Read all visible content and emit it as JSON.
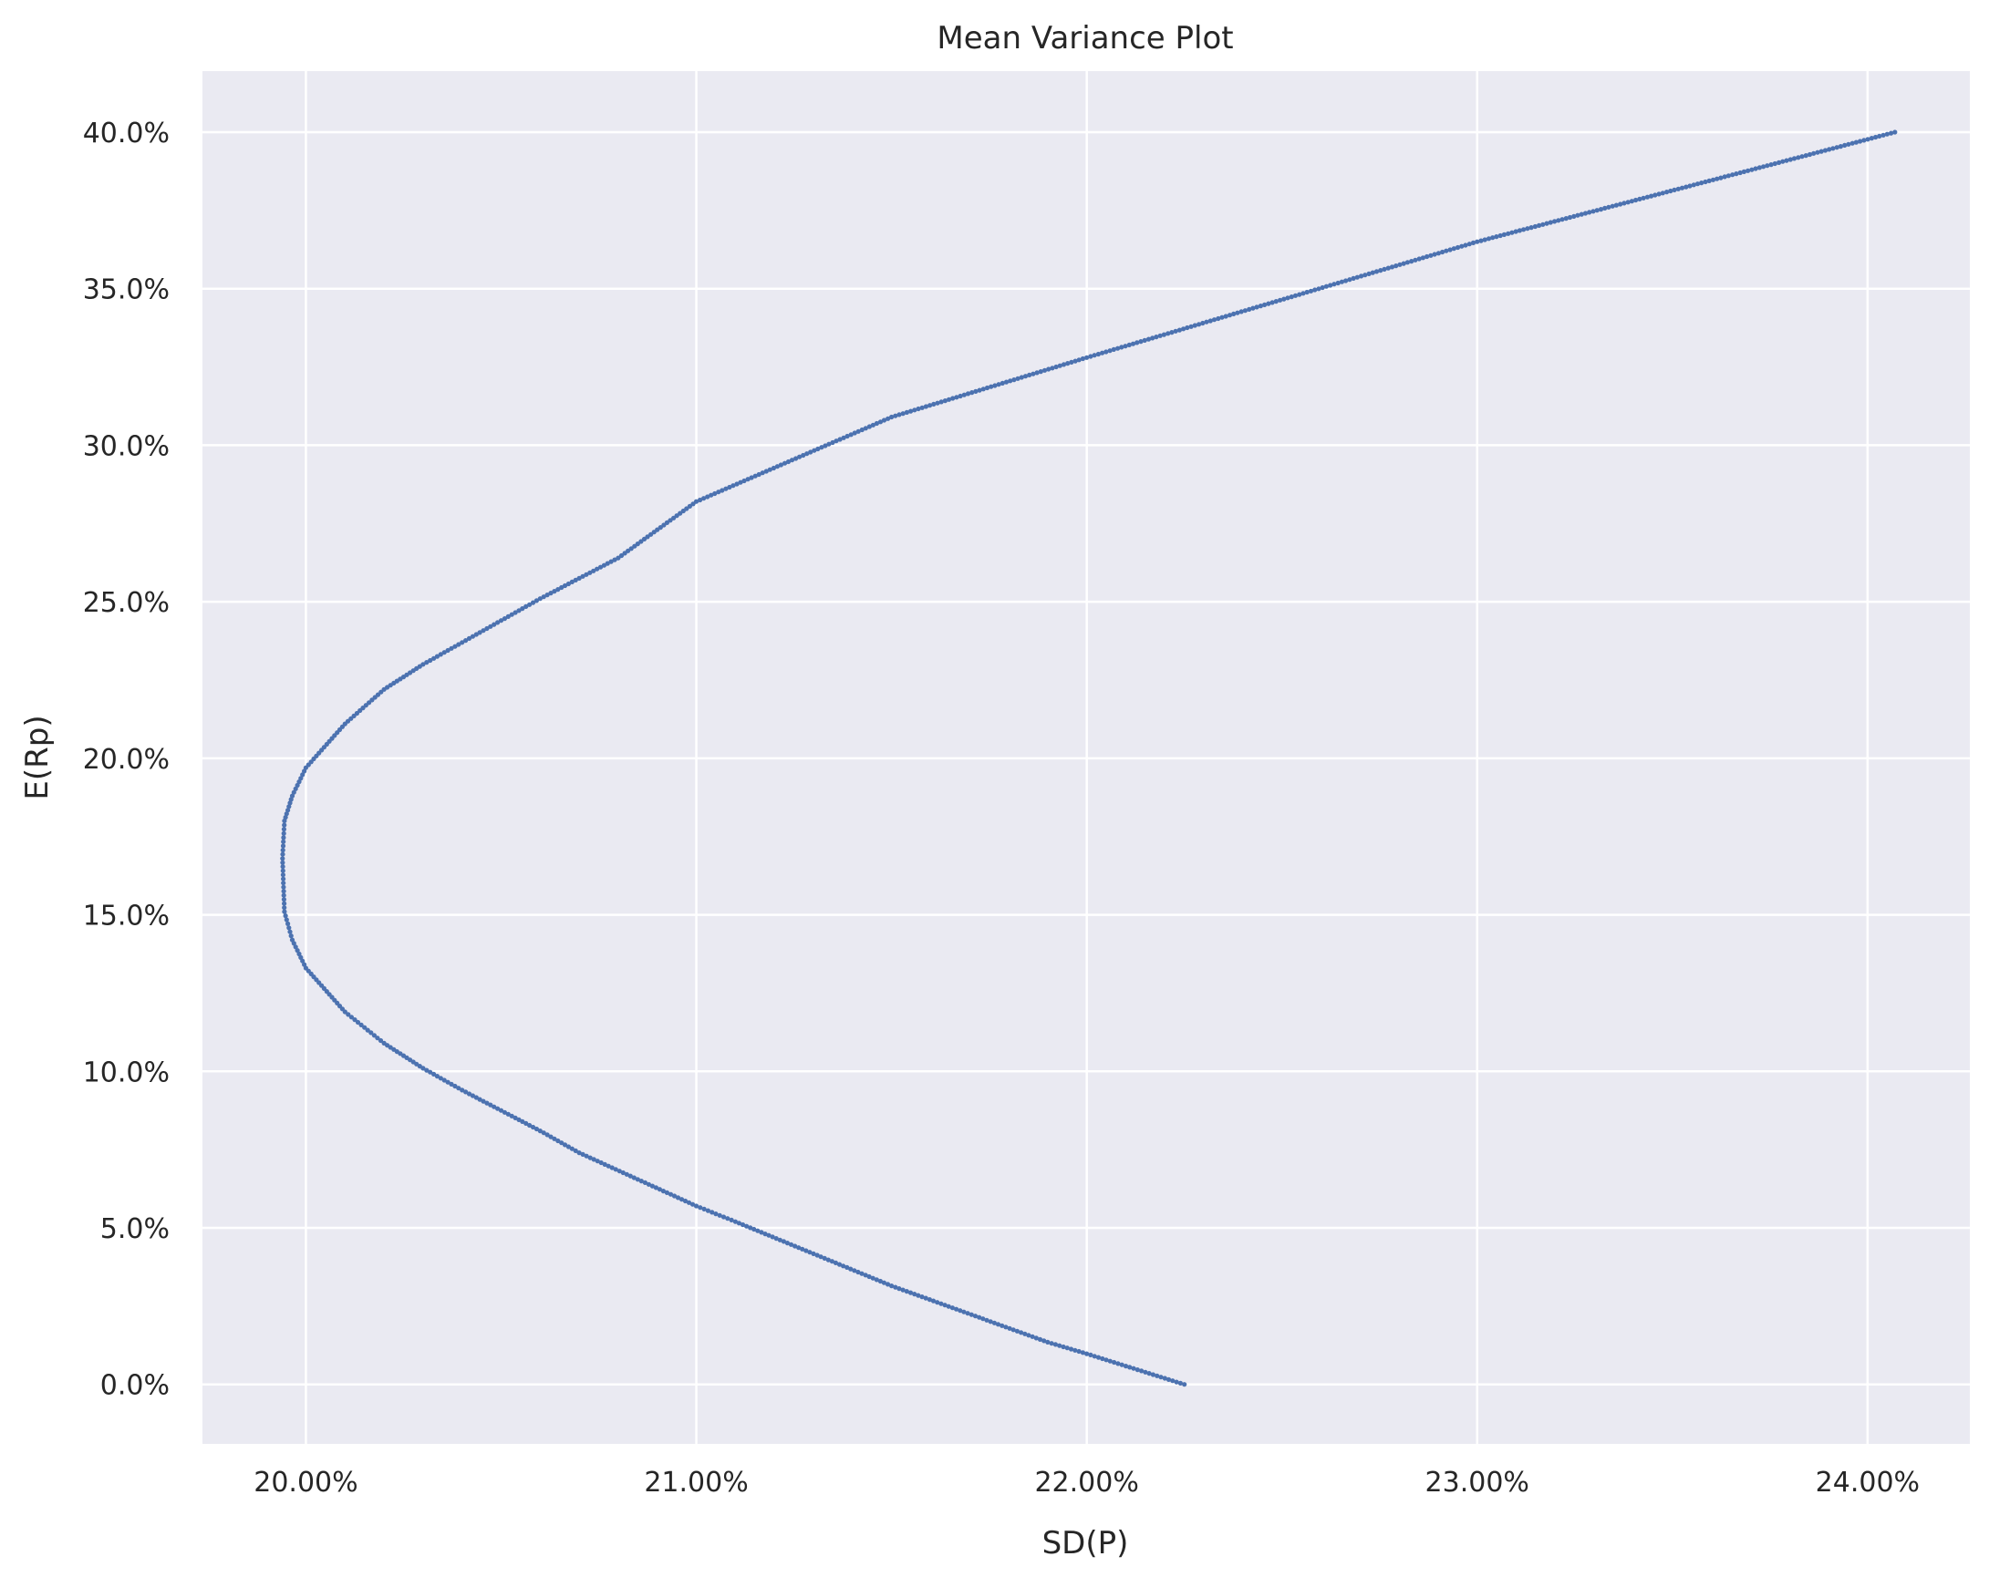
{
  "chart_data": {
    "type": "scatter",
    "title": "Mean Variance Plot",
    "xlabel": "SD(P)",
    "ylabel": "E(Rp)",
    "xlim": [
      0.19735,
      0.24262
    ],
    "ylim": [
      -0.019,
      0.4195
    ],
    "x_ticks": [
      0.2,
      0.21,
      0.22,
      0.23,
      0.24
    ],
    "x_tick_labels": [
      "20.00%",
      "21.00%",
      "22.00%",
      "23.00%",
      "24.00%"
    ],
    "y_ticks": [
      0.0,
      0.05,
      0.1,
      0.15,
      0.2,
      0.25,
      0.3,
      0.35,
      0.4
    ],
    "y_tick_labels": [
      "0.0%",
      "5.0%",
      "10.0%",
      "15.0%",
      "20.0%",
      "25.0%",
      "30.0%",
      "35.0%",
      "40.0%"
    ],
    "grid": true,
    "series": [
      {
        "color": "#4c72b0",
        "x": [
          0.2225,
          0.22,
          0.219,
          0.215,
          0.211,
          0.21,
          0.207,
          0.206,
          0.204,
          0.203,
          0.202,
          0.201,
          0.2,
          0.19965,
          0.19945,
          0.1994,
          0.19945,
          0.19965,
          0.2,
          0.201,
          0.202,
          0.203,
          0.204,
          0.206,
          0.208,
          0.21,
          0.215,
          0.22,
          0.23,
          0.2407
        ],
        "y": [
          0.0,
          0.0098,
          0.0135,
          0.0315,
          0.052,
          0.057,
          0.074,
          0.081,
          0.094,
          0.101,
          0.109,
          0.119,
          0.133,
          0.142,
          0.151,
          0.168,
          0.18,
          0.188,
          0.197,
          0.211,
          0.222,
          0.23,
          0.237,
          0.251,
          0.264,
          0.282,
          0.309,
          0.328,
          0.365,
          0.4
        ]
      }
    ]
  }
}
